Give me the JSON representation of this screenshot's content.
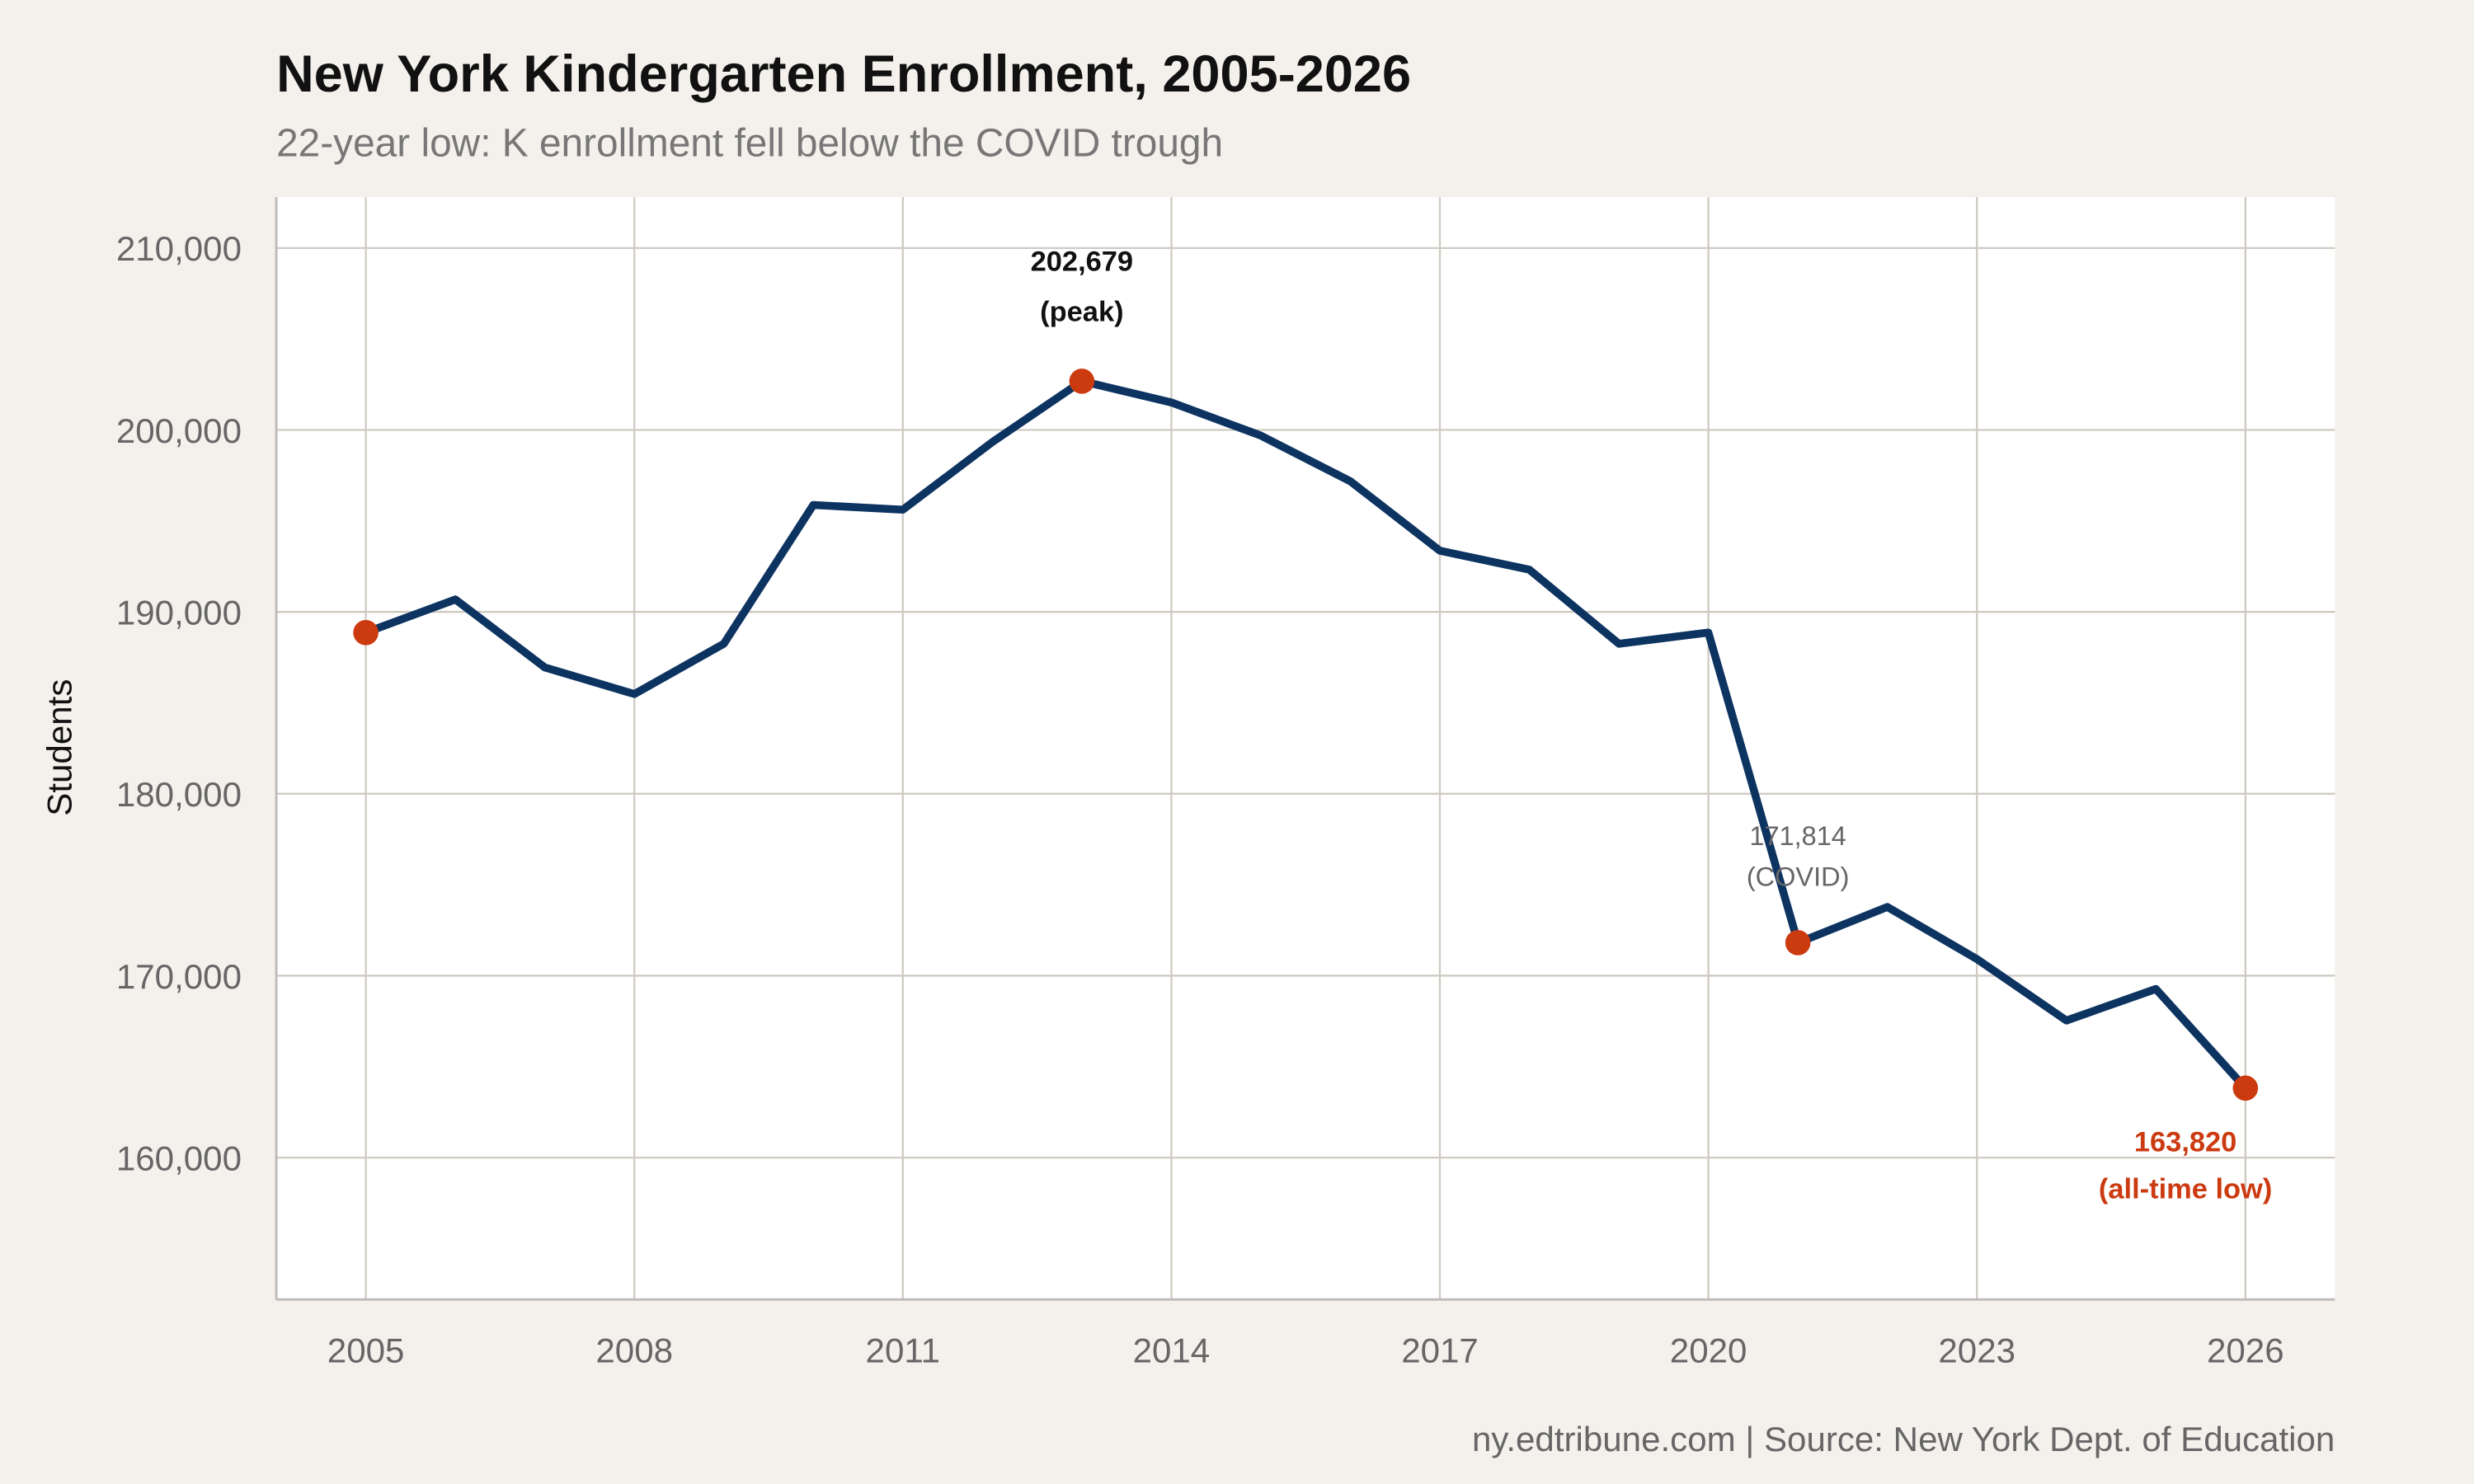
{
  "chart_data": {
    "type": "line",
    "title": "New York Kindergarten Enrollment, 2005-2026",
    "subtitle": "22-year low: K enrollment fell below the COVID trough",
    "xlabel": "",
    "ylabel": "Students",
    "caption": "ny.edtribune.com | Source: New York Dept. of Education",
    "xlim": [
      2004,
      2027
    ],
    "ylim": [
      152200,
      212800
    ],
    "x_ticks": [
      2005,
      2008,
      2011,
      2014,
      2017,
      2020,
      2023,
      2026
    ],
    "x_tick_labels": [
      "2005",
      "2008",
      "2011",
      "2014",
      "2017",
      "2020",
      "2023",
      "2026"
    ],
    "y_ticks": [
      160000,
      170000,
      180000,
      190000,
      200000,
      210000
    ],
    "y_tick_labels": [
      "160,000",
      "170,000",
      "180,000",
      "190,000",
      "200,000",
      "210,000"
    ],
    "grid": true,
    "x": [
      2005,
      2006,
      2007,
      2008,
      2009,
      2010,
      2011,
      2012,
      2013,
      2014,
      2015,
      2016,
      2017,
      2018,
      2019,
      2020,
      2021,
      2022,
      2023,
      2024,
      2025,
      2026
    ],
    "values": [
      188860,
      190680,
      186950,
      185480,
      188250,
      195880,
      195620,
      199340,
      202679,
      201510,
      199690,
      197180,
      193360,
      192320,
      188250,
      188860,
      171814,
      173780,
      170920,
      167540,
      169270,
      163820
    ],
    "highlight_points": [
      2005,
      2013,
      2021,
      2026
    ],
    "annotations": [
      {
        "x": 2013,
        "value_text": "202,679",
        "note": "(peak)",
        "color": "#111111"
      },
      {
        "x": 2021,
        "value_text": "171,814",
        "note": "(COVID)",
        "color": "#666666"
      },
      {
        "x": 2026,
        "value_text": "163,820",
        "note": "(all-time low)",
        "color": "#cc3a10"
      }
    ],
    "colors": {
      "line": "#0d3461",
      "points": "#cc3a10",
      "background": "#f4f1ec",
      "panel": "#ffffff",
      "grid": "#cfcac2"
    }
  }
}
